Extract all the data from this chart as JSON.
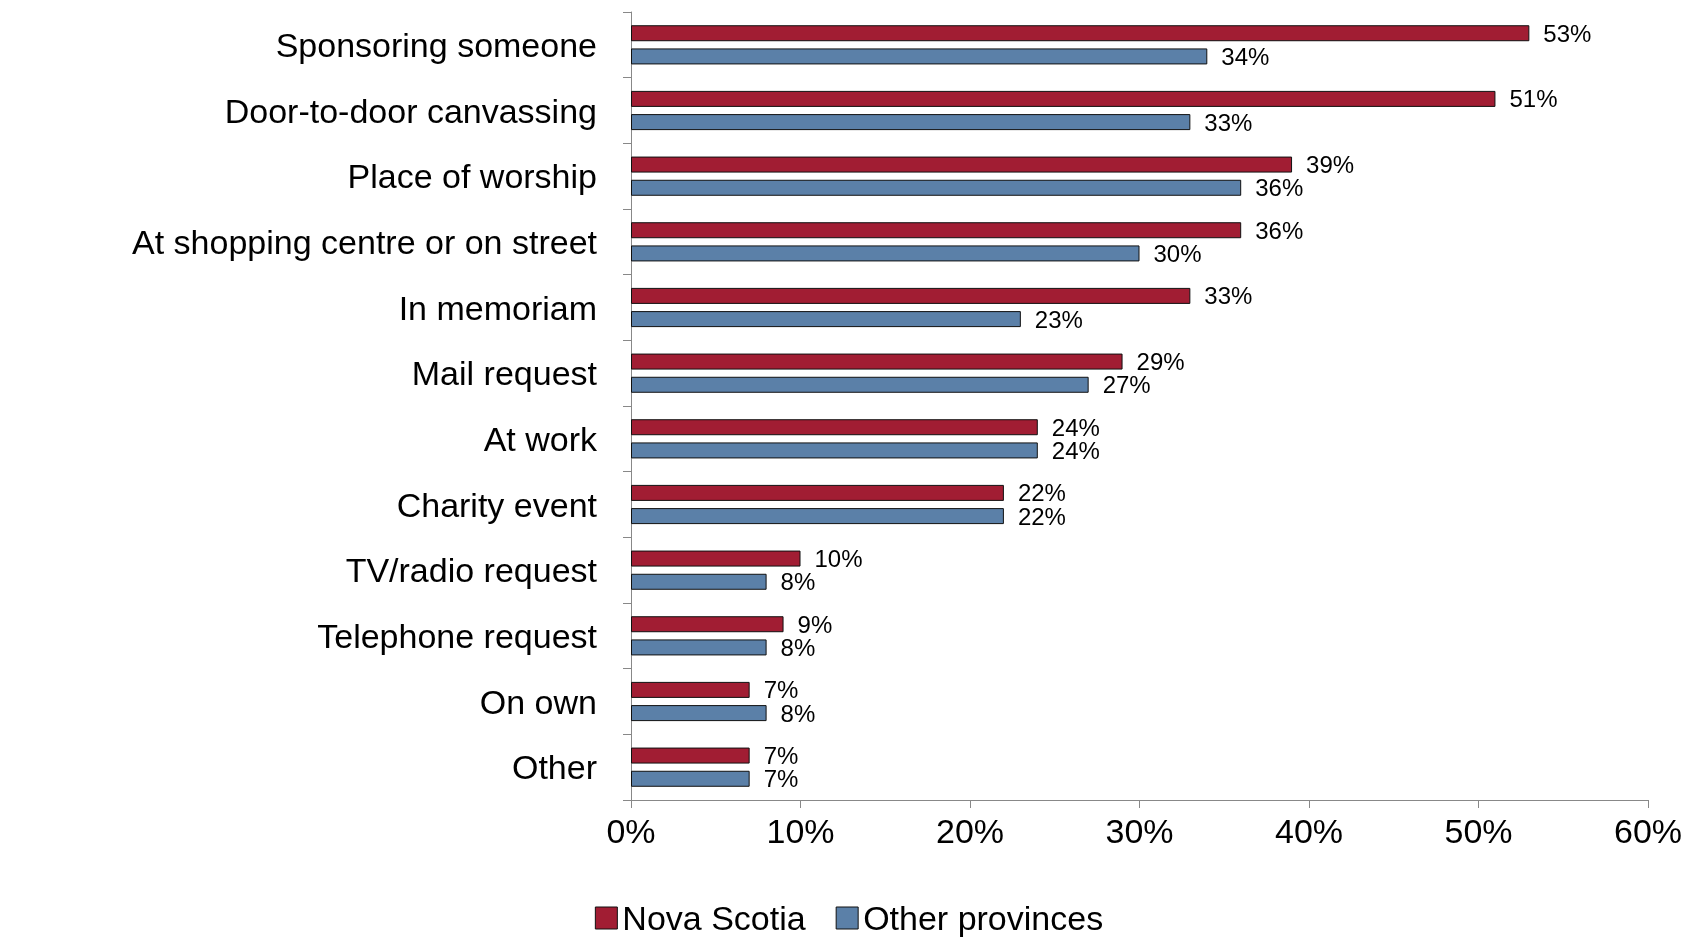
{
  "chart_data": {
    "type": "bar",
    "orientation": "horizontal",
    "categories": [
      "Sponsoring someone",
      "Door-to-door canvassing",
      "Place of worship",
      "At shopping centre or on street",
      "In memoriam",
      "Mail request",
      "At work",
      "Charity event",
      "TV/radio request",
      "Telephone request",
      "On own",
      "Other"
    ],
    "series": [
      {
        "name": "Nova Scotia",
        "color": "#a11d33",
        "values": [
          53,
          51,
          39,
          36,
          33,
          29,
          24,
          22,
          10,
          9,
          7,
          7
        ],
        "value_labels": [
          "53%",
          "51%",
          "39%",
          "36%",
          "33%",
          "29%",
          "24%",
          "22%",
          "10%",
          "9%",
          "7%",
          "7%"
        ]
      },
      {
        "name": "Other provinces",
        "color": "#5b80a8",
        "values": [
          34,
          33,
          36,
          30,
          23,
          27,
          24,
          22,
          8,
          8,
          8,
          7
        ],
        "value_labels": [
          "34%",
          "33%",
          "36%",
          "30%",
          "23%",
          "27%",
          "24%",
          "22%",
          "8%",
          "8%",
          "8%",
          "7%"
        ]
      }
    ],
    "xlim": [
      0,
      60
    ],
    "xticks": [
      {
        "value": 0,
        "label": "0%"
      },
      {
        "value": 10,
        "label": "10%"
      },
      {
        "value": 20,
        "label": "20%"
      },
      {
        "value": 30,
        "label": "30%"
      },
      {
        "value": 40,
        "label": "40%"
      },
      {
        "value": 50,
        "label": "50%"
      },
      {
        "value": 60,
        "label": "60%"
      }
    ],
    "grid": false,
    "legend": "bottom"
  }
}
